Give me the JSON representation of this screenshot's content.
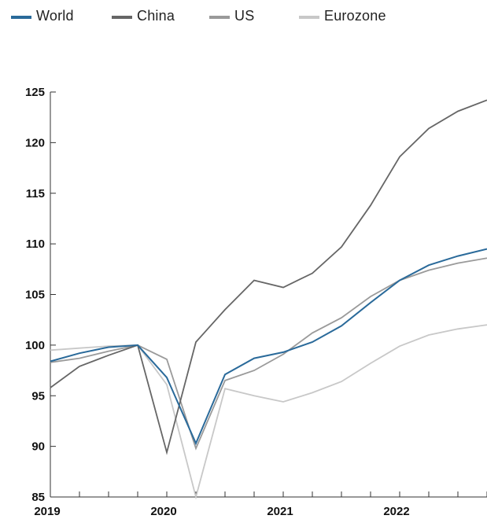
{
  "chart_data": {
    "type": "line",
    "title": "",
    "xlabel": "",
    "ylabel": "",
    "legend_position": "top-left",
    "grid": false,
    "ylim": [
      85,
      125
    ],
    "y_ticks": [
      "125",
      "120",
      "115",
      "110",
      "105",
      "100",
      "95",
      "90",
      "85"
    ],
    "x_tick_labels": [
      "2019",
      "2020",
      "2021",
      "2022"
    ],
    "x": [
      "2019Q1",
      "2019Q2",
      "2019Q3",
      "2019Q4",
      "2020Q1",
      "2020Q2",
      "2020Q3",
      "2020Q4",
      "2021Q1",
      "2021Q2",
      "2021Q3",
      "2021Q4",
      "2022Q1",
      "2022Q2",
      "2022Q3",
      "2022Q4"
    ],
    "series": [
      {
        "name": "World",
        "color": "#2a6a9a",
        "values": [
          98.4,
          99.2,
          99.8,
          100.0,
          96.8,
          90.3,
          97.1,
          98.7,
          99.3,
          100.3,
          101.9,
          104.2,
          106.4,
          107.9,
          108.8,
          109.5
        ]
      },
      {
        "name": "China",
        "color": "#666666",
        "values": [
          95.8,
          97.9,
          99.0,
          100.0,
          89.4,
          100.3,
          103.5,
          106.4,
          105.7,
          107.1,
          109.7,
          113.8,
          118.6,
          121.4,
          123.1,
          124.2
        ]
      },
      {
        "name": "US",
        "color": "#9a9a9a",
        "values": [
          98.3,
          98.7,
          99.4,
          100.0,
          98.6,
          89.8,
          96.5,
          97.5,
          99.1,
          101.2,
          102.7,
          104.8,
          106.4,
          107.4,
          108.1,
          108.6
        ]
      },
      {
        "name": "Eurozone",
        "color": "#c8c8c8",
        "values": [
          99.5,
          99.7,
          99.9,
          100.0,
          96.1,
          85.0,
          95.7,
          95.0,
          94.4,
          95.3,
          96.4,
          98.2,
          99.9,
          101.0,
          101.6,
          102.0
        ]
      }
    ]
  }
}
